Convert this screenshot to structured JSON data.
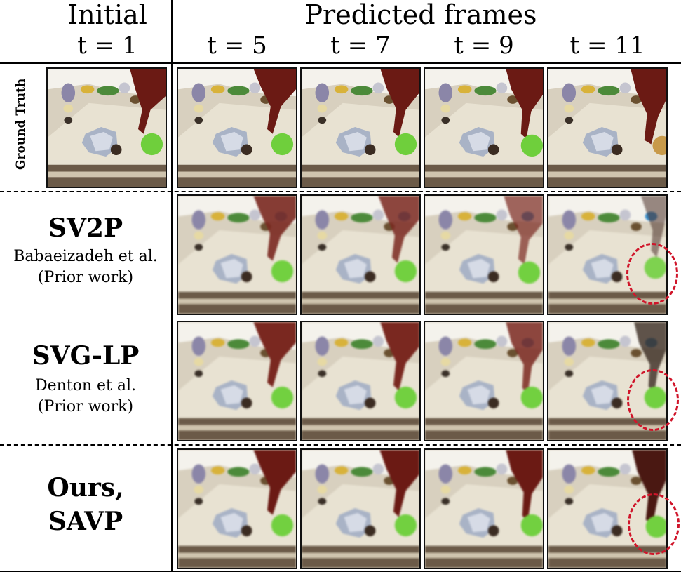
{
  "header": {
    "initial_title": "Initial",
    "initial_time": "t = 1",
    "predicted_title": "Predicted frames",
    "times": [
      "t = 5",
      "t = 7",
      "t = 9",
      "t = 11"
    ]
  },
  "rows": {
    "ground_truth": {
      "label": "Ground Truth"
    },
    "sv2p": {
      "name": "SV2P",
      "author": "Babaeizadeh et al.",
      "note": "(Prior work)"
    },
    "svglp": {
      "name": "SVG-LP",
      "author": "Denton et al.",
      "note": "(Prior work)"
    },
    "ours": {
      "name_line1": "Ours,",
      "name_line2": "SAVP"
    }
  },
  "colors": {
    "highlight_circle": "#d0152a"
  }
}
